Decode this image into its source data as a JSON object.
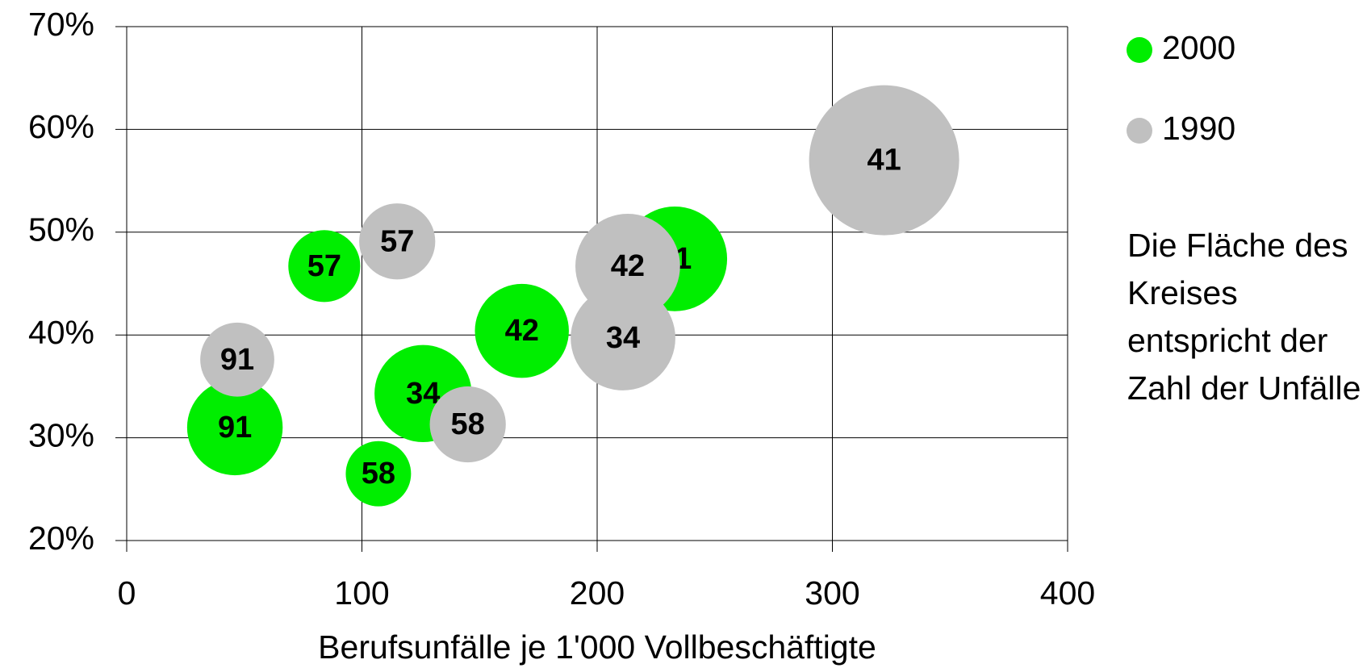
{
  "chart_data": {
    "type": "bubble",
    "xlabel": "Berufsunfälle je 1'000 Vollbeschäftigte",
    "note": "Die Fläche des Kreises entspricht der Zahl der Unfälle",
    "xlim": [
      0,
      400
    ],
    "xticks": [
      0,
      100,
      200,
      300,
      400
    ],
    "ylim": [
      20,
      70
    ],
    "yticks": [
      {
        "value": 20,
        "label": "20%"
      },
      {
        "value": 30,
        "label": "30%"
      },
      {
        "value": 40,
        "label": "40%"
      },
      {
        "value": 50,
        "label": "50%"
      },
      {
        "value": 60,
        "label": "60%"
      },
      {
        "value": 70,
        "label": "70%"
      }
    ],
    "grid": true,
    "series": [
      {
        "name": "2000",
        "color": "#00ee00",
        "labels": [
          "91",
          "57",
          "34",
          "58",
          "42",
          "41"
        ],
        "x": [
          46,
          84,
          126,
          107,
          168,
          233
        ],
        "values": [
          31.0,
          46.7,
          34.3,
          26.5,
          40.4,
          47.4
        ],
        "sizes": [
          30,
          17,
          31,
          14,
          29,
          36
        ]
      },
      {
        "name": "1990",
        "color": "#c0c0c0",
        "labels": [
          "91",
          "57",
          "58",
          "42",
          "34",
          "41"
        ],
        "x": [
          47,
          115,
          145,
          213,
          211,
          322
        ],
        "values": [
          37.6,
          49.1,
          31.3,
          46.7,
          39.7,
          57.0
        ],
        "sizes": [
          18,
          19,
          19,
          36,
          36,
          74
        ]
      }
    ]
  }
}
